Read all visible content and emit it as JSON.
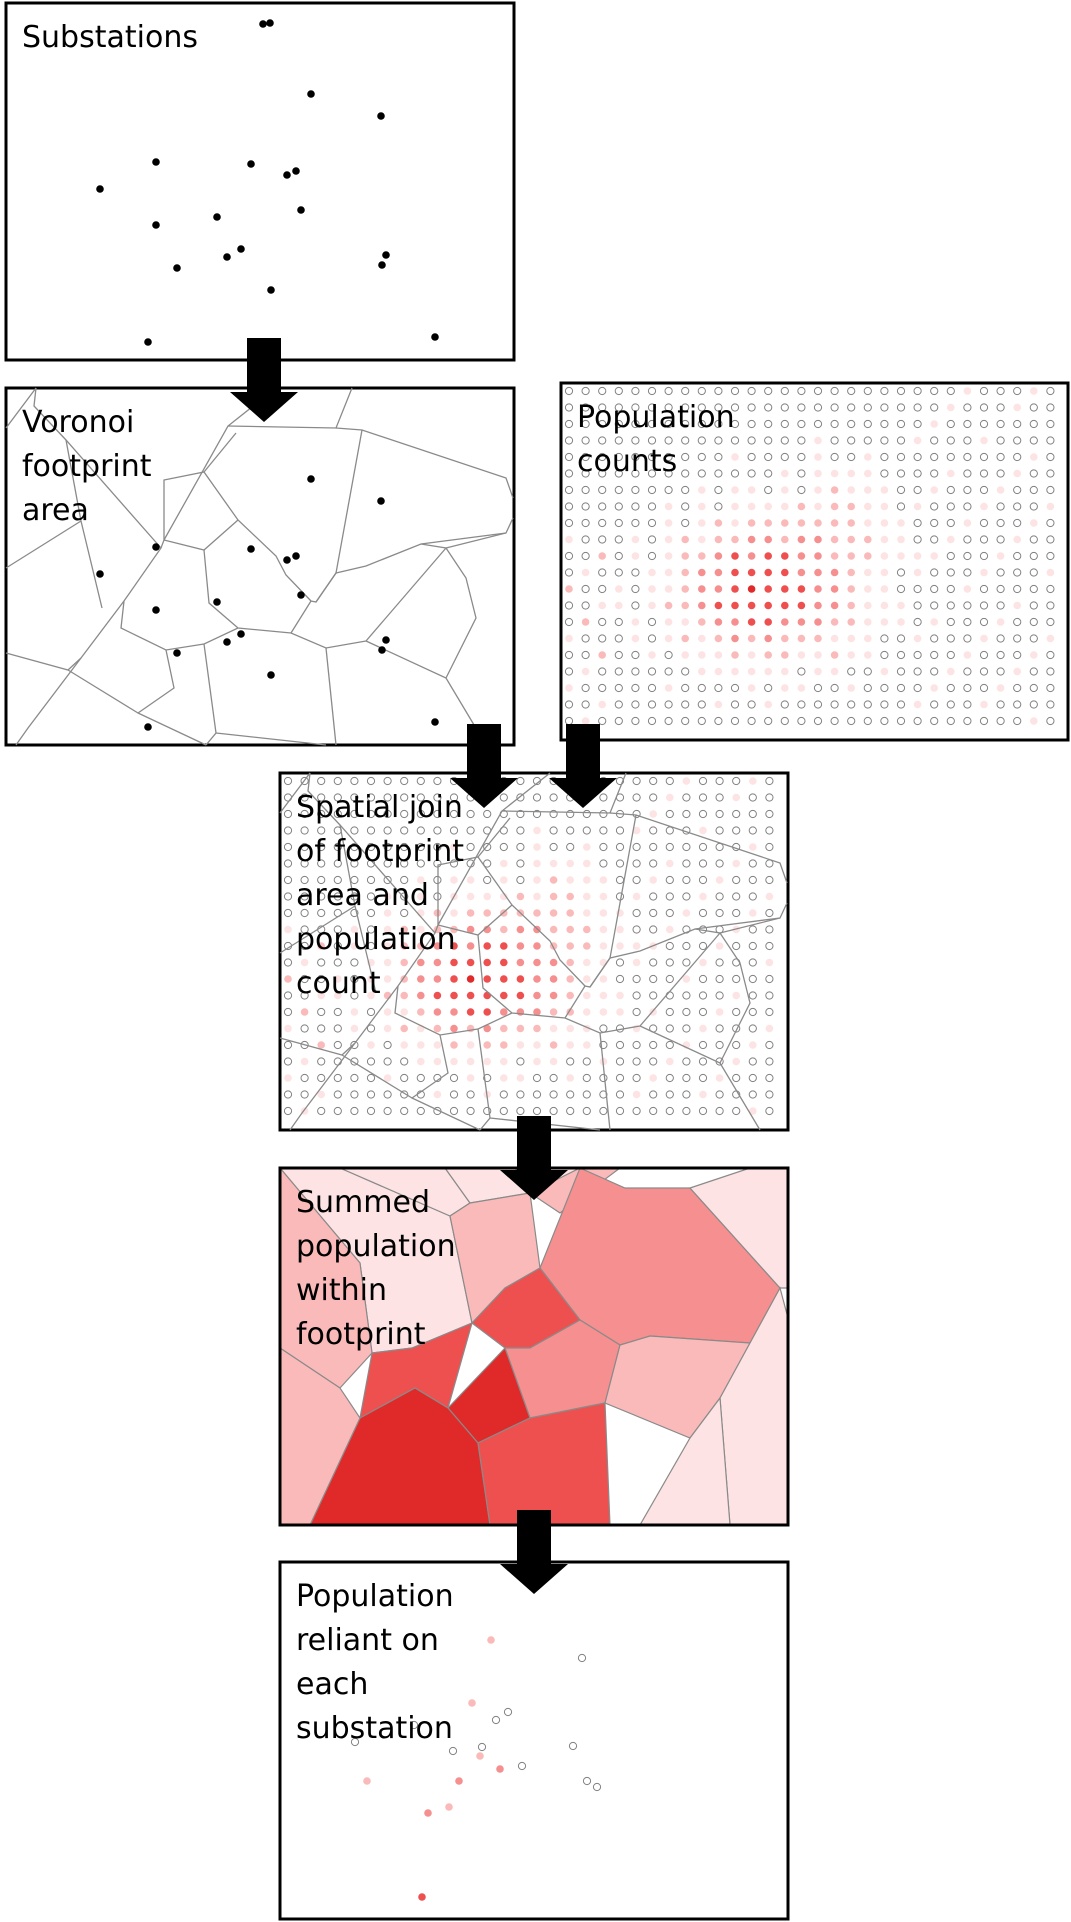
{
  "panels": [
    {
      "id": "substations",
      "label_lines": [
        "Substations"
      ]
    },
    {
      "id": "voronoi",
      "label_lines": [
        "Voronoi",
        "footprint",
        "area"
      ]
    },
    {
      "id": "population",
      "label_lines": [
        "Population",
        "counts"
      ]
    },
    {
      "id": "spatial_join",
      "label_lines": [
        "Spatial join",
        "of footprint",
        "area and",
        "population",
        "count"
      ]
    },
    {
      "id": "summed",
      "label_lines": [
        "Summed",
        "population",
        "within",
        "footprint"
      ]
    },
    {
      "id": "reliant",
      "label_lines": [
        "Population",
        "reliant on",
        "each",
        "substation"
      ]
    }
  ],
  "colors": {
    "border": "#000000",
    "arrow": "#000000",
    "substation_dot": "#000000",
    "voronoi_edge": "#8a8a8a",
    "empty_cell": "#808080",
    "population_scale": [
      "#fde3e3",
      "#fbbaba",
      "#f68f8f",
      "#ee5050",
      "#e02a2a"
    ]
  },
  "icons": {
    "flow_arrow": "down-arrow-icon"
  }
}
